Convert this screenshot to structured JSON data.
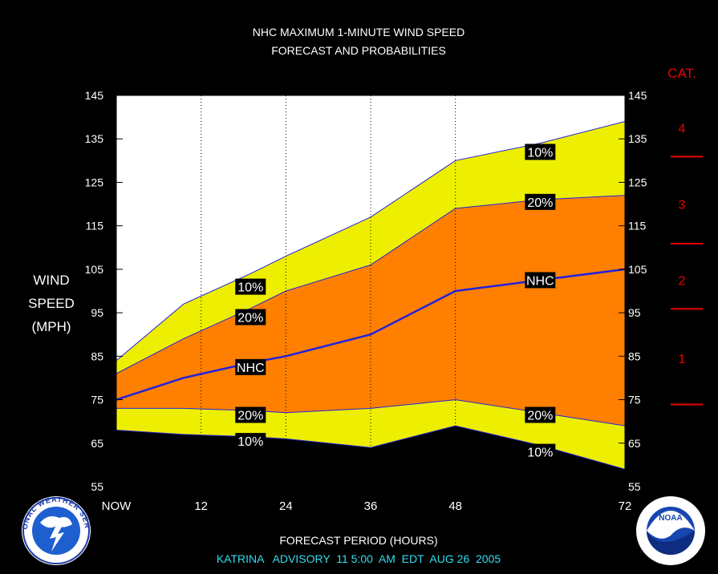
{
  "chart_data": {
    "type": "area",
    "title": [
      "NHC MAXIMUM 1-MINUTE WIND SPEED",
      "FORECAST AND PROBABILITIES"
    ],
    "ylabel": [
      "WIND",
      "SPEED",
      "(MPH)"
    ],
    "xlabel": "FORECAST PERIOD (HOURS)",
    "subtitle": "KATRINA   ADVISORY  11 5:00  AM  EDT  AUG 26  2005",
    "xlim": [
      0,
      72
    ],
    "ylim": [
      55,
      145
    ],
    "yticks": [
      55,
      65,
      75,
      85,
      95,
      105,
      115,
      125,
      135,
      145
    ],
    "xticks": [
      {
        "value": 0,
        "label": "NOW"
      },
      {
        "value": 12,
        "label": "12"
      },
      {
        "value": 24,
        "label": "24"
      },
      {
        "value": 36,
        "label": "36"
      },
      {
        "value": 48,
        "label": "48"
      },
      {
        "value": 72,
        "label": "72"
      }
    ],
    "x": [
      0,
      9.5,
      19,
      24,
      36,
      48,
      60,
      72
    ],
    "bands": {
      "upper_10": [
        84,
        97,
        104,
        108,
        117,
        130,
        134,
        139
      ],
      "upper_20": [
        81,
        89,
        96,
        100,
        106,
        119,
        121,
        122
      ],
      "nhc": [
        75,
        80,
        83.5,
        85,
        90,
        100,
        102.5,
        105
      ],
      "lower_20": [
        73,
        73,
        72.5,
        72,
        73,
        75,
        72,
        69
      ],
      "lower_10": [
        68,
        67,
        66.5,
        66,
        64,
        69,
        64.5,
        59
      ]
    },
    "band_labels": [
      {
        "text": "10%",
        "x": 19,
        "y": 101
      },
      {
        "text": "20%",
        "x": 19,
        "y": 94
      },
      {
        "text": "NHC",
        "x": 19,
        "y": 82.5
      },
      {
        "text": "20%",
        "x": 19,
        "y": 71.5
      },
      {
        "text": "10%",
        "x": 19,
        "y": 65.5
      },
      {
        "text": "10%",
        "x": 60,
        "y": 132
      },
      {
        "text": "20%",
        "x": 60,
        "y": 120.5
      },
      {
        "text": "NHC",
        "x": 60,
        "y": 102.5
      },
      {
        "text": "20%",
        "x": 60,
        "y": 71.5
      },
      {
        "text": "10%",
        "x": 60,
        "y": 63
      }
    ],
    "category_label": "CAT.",
    "categories": [
      {
        "label": "1",
        "low": 74,
        "high": 95
      },
      {
        "label": "2",
        "low": 95,
        "high": 110
      },
      {
        "label": "3",
        "low": 110,
        "high": 130
      },
      {
        "label": "4",
        "low": 130,
        "high": 145
      }
    ],
    "category_boundaries": [
      74,
      96,
      111,
      131
    ],
    "colors": {
      "background": "#000000",
      "plot": "#ffffff",
      "outer_band": "#eeee00",
      "inner_band": "#ff8000",
      "nhc_line": "#2222dd",
      "category": "#ee0000",
      "subtitle": "#33ddee"
    }
  },
  "logos": {
    "left": "NATIONAL WEATHER SERVICE",
    "right": "NOAA"
  }
}
